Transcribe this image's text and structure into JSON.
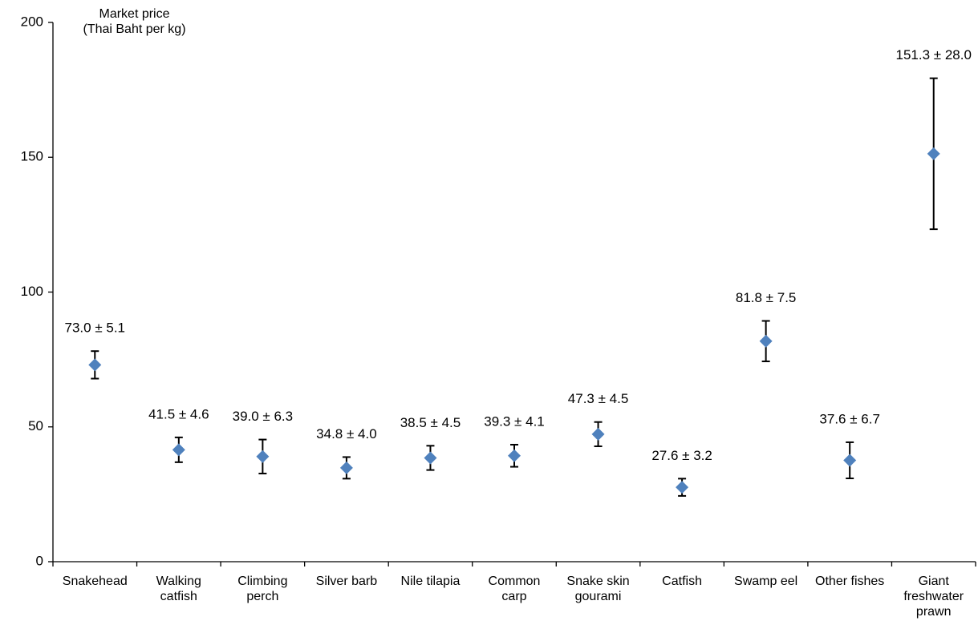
{
  "chart_data": {
    "type": "point",
    "y_label": "Market price\n(Thai Baht per kg)",
    "categories": [
      "Snakehead",
      "Walking\ncatfish",
      "Climbing\nperch",
      "Silver barb",
      "Nile tilapia",
      "Common\ncarp",
      "Snake skin\ngourami",
      "Catfish",
      "Swamp eel",
      "Other fishes",
      "Giant\nfreshwater\nprawn"
    ],
    "values": [
      73.0,
      41.5,
      39.0,
      34.8,
      38.5,
      39.3,
      47.3,
      27.6,
      81.8,
      37.6,
      151.3
    ],
    "errors": [
      5.1,
      4.6,
      6.3,
      4.0,
      4.5,
      4.1,
      4.5,
      3.2,
      7.5,
      6.7,
      28.0
    ],
    "value_labels": [
      "73.0 ± 5.1",
      "41.5 ± 4.6",
      "39.0 ± 6.3",
      "34.8 ± 4.0",
      "38.5 ± 4.5",
      "39.3 ± 4.1",
      "47.3 ± 4.5",
      "27.6 ± 3.2",
      "81.8 ± 7.5",
      "37.6 ± 6.7",
      "151.3 ± 28.0"
    ],
    "color": "#4f81bd",
    "error_color": "#000000",
    "ylim": [
      0,
      200
    ],
    "yticks": [
      0,
      50,
      100,
      150,
      200
    ]
  }
}
